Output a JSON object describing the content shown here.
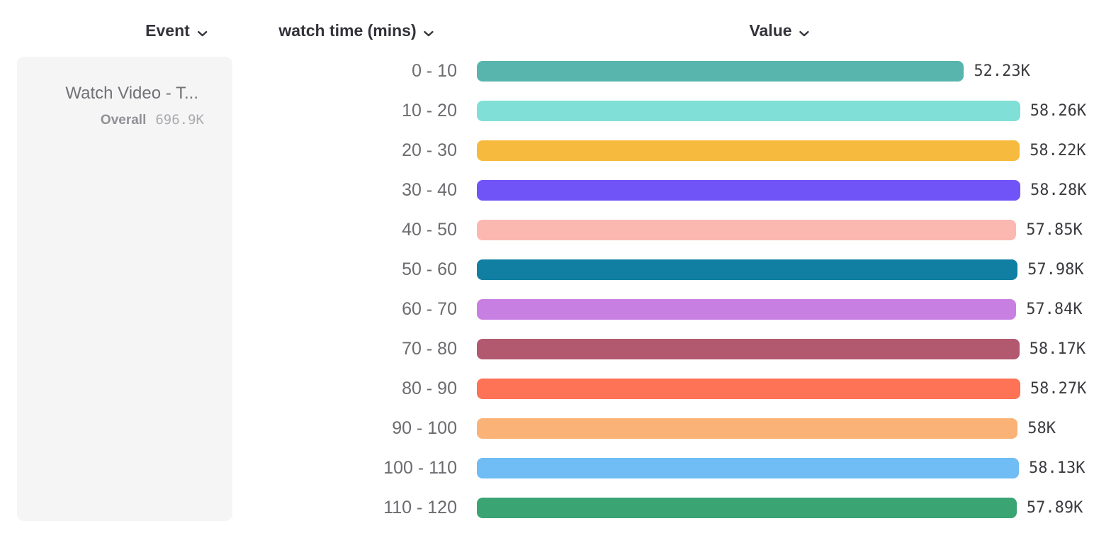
{
  "header": {
    "columns": [
      {
        "id": "event",
        "label": "Event",
        "icon": "chevron-down-icon"
      },
      {
        "id": "breakdown",
        "label": "watch time (mins)",
        "icon": "chevron-down-icon"
      },
      {
        "id": "value",
        "label": "Value",
        "icon": "chevron-down-icon"
      }
    ]
  },
  "legend": {
    "event_name": "Watch Video - T...",
    "overall_label": "Overall",
    "overall_value": "696.9K"
  },
  "chart_data": {
    "type": "bar",
    "orientation": "horizontal",
    "title": "",
    "xlabel": "Value",
    "ylabel": "watch time (mins)",
    "xlim": [
      0,
      58.28
    ],
    "grid": false,
    "value_label_position": "right-of-bar",
    "categories": [
      "0 - 10",
      "10 - 20",
      "20 - 30",
      "30 - 40",
      "40 - 50",
      "50 - 60",
      "60 - 70",
      "70 - 80",
      "80 - 90",
      "90 - 100",
      "100 - 110",
      "110 - 120"
    ],
    "values_thousands": [
      52.23,
      58.26,
      58.22,
      58.28,
      57.85,
      57.98,
      57.84,
      58.17,
      58.27,
      58.0,
      58.13,
      57.89
    ],
    "value_labels": [
      "52.23K",
      "58.26K",
      "58.22K",
      "58.28K",
      "57.85K",
      "57.98K",
      "57.84K",
      "58.17K",
      "58.27K",
      "58K",
      "58.13K",
      "57.89K"
    ],
    "bar_colors": [
      "#58B5AE",
      "#80DFD6",
      "#F6BA3E",
      "#7154F8",
      "#FBB8B0",
      "#107FA2",
      "#C87FE2",
      "#B2596F",
      "#FE7256",
      "#FBB277",
      "#70BCF5",
      "#3AA473"
    ]
  },
  "colors": {
    "page_background": "#FFFFFF",
    "card_background": "#F5F5F6",
    "header_text": "#33333A",
    "category_text": "#6B6B70",
    "value_text": "#3B3B40",
    "event_name_text": "#717176",
    "overall_label_text": "#909095",
    "overall_value_text": "#ACACB0"
  }
}
